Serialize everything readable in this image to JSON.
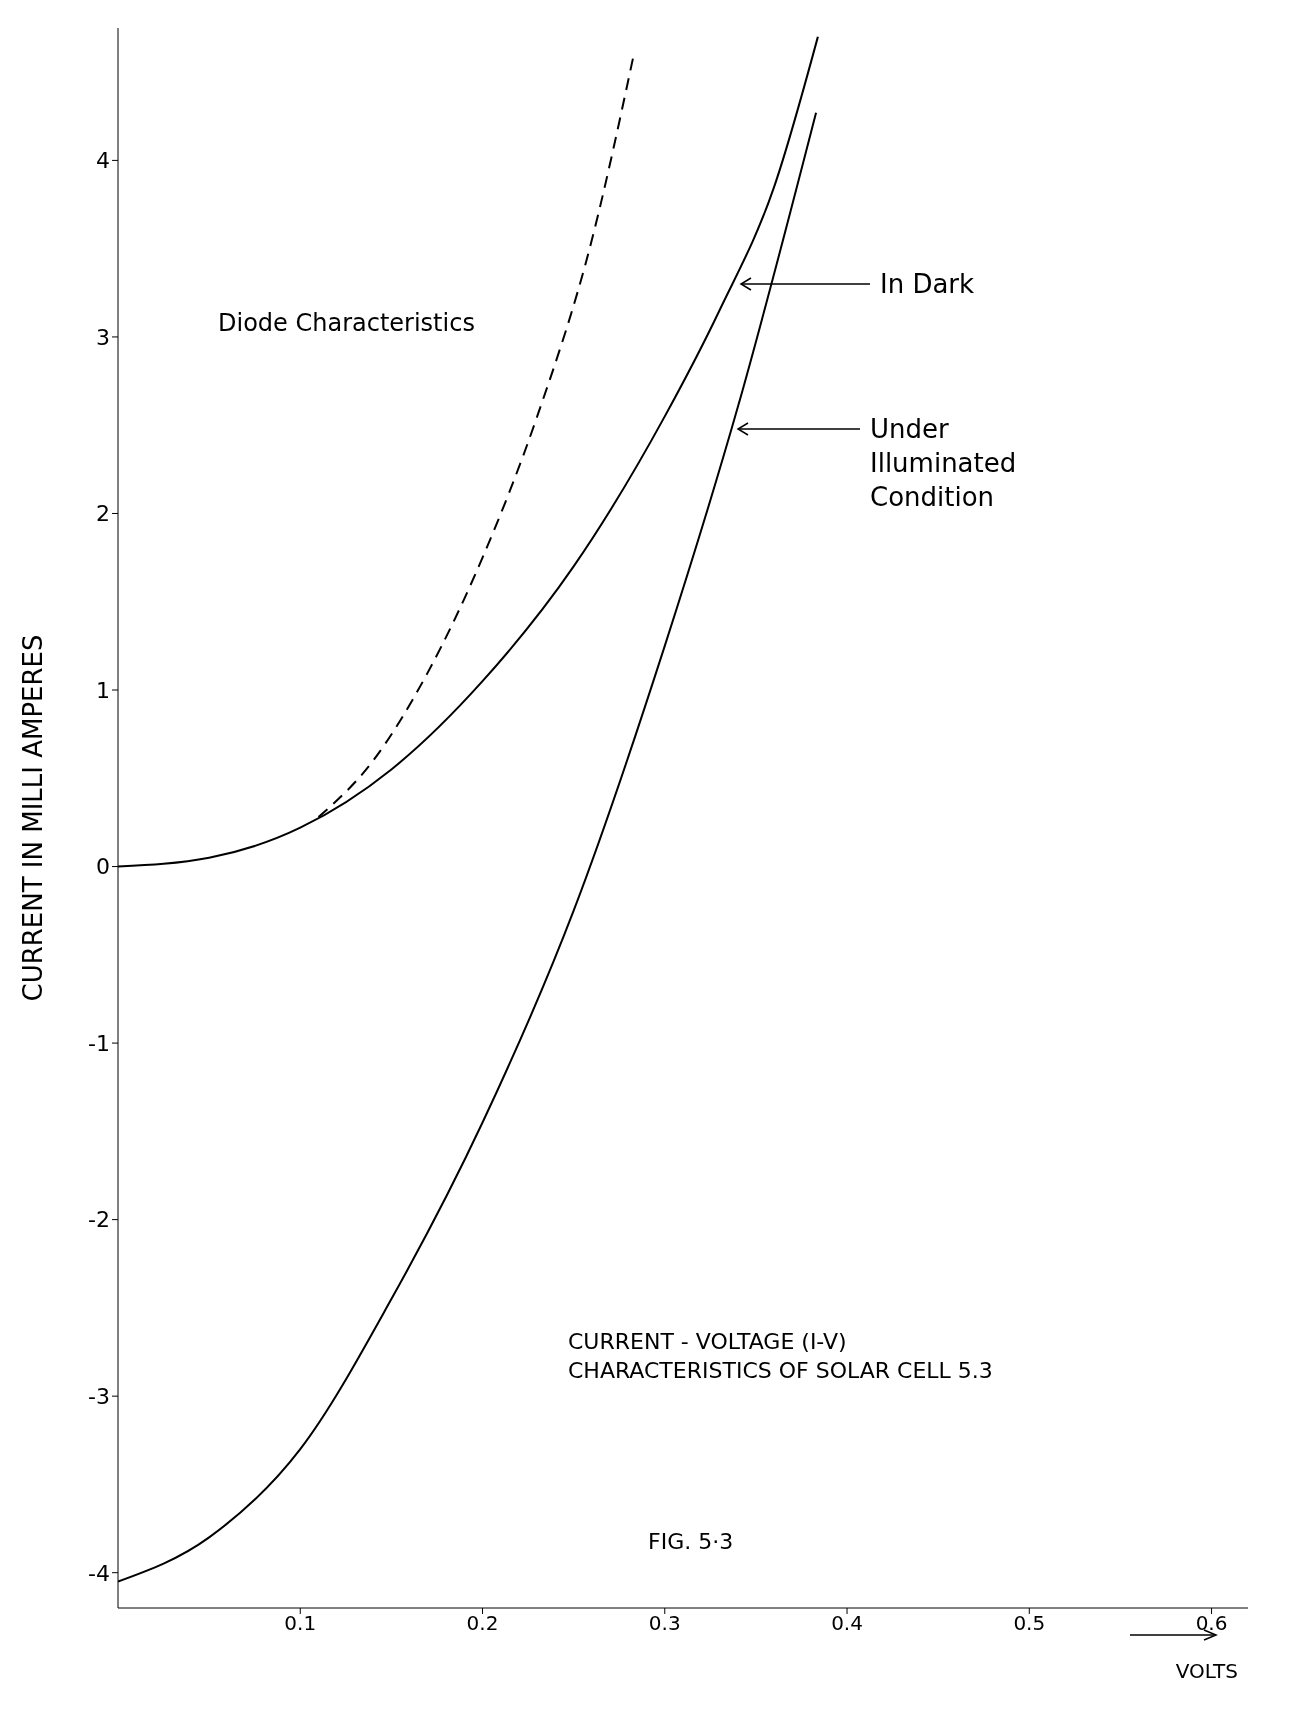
{
  "chart_data": {
    "type": "line",
    "xlabel": "VOLTS",
    "ylabel": "CURRENT IN MILLI AMPERES",
    "xlim": [
      0,
      0.62
    ],
    "ylim": [
      -4.2,
      4.75
    ],
    "xticks": [
      0.1,
      0.2,
      0.3,
      0.4,
      0.5,
      0.6
    ],
    "yticks": [
      -4,
      -3,
      -2,
      -1,
      0,
      1,
      2,
      3,
      4
    ],
    "series": [
      {
        "color": "#000000",
        "line_style": "dashed",
        "x": [
          0.11,
          0.14,
          0.17,
          0.2,
          0.23,
          0.26,
          0.283
        ],
        "values": [
          0.28,
          0.6,
          1.1,
          1.75,
          2.55,
          3.55,
          4.6
        ]
      },
      {
        "color": "#000000",
        "line_style": "solid",
        "x": [
          0,
          0.05,
          0.1,
          0.15,
          0.2,
          0.25,
          0.3,
          0.33,
          0.36,
          0.384
        ],
        "values": [
          0,
          0.05,
          0.22,
          0.55,
          1.05,
          1.7,
          2.55,
          3.15,
          3.85,
          4.7
        ]
      },
      {
        "color": "#000000",
        "line_style": "solid",
        "x": [
          0,
          0.05,
          0.1,
          0.15,
          0.2,
          0.25,
          0.3,
          0.34,
          0.383
        ],
        "values": [
          -4.05,
          -3.8,
          -3.3,
          -2.45,
          -1.45,
          -0.25,
          1.25,
          2.6,
          4.27
        ]
      }
    ],
    "annotations": [
      "Diode Characteristics",
      "CURRENT - VOLTAGE (I-V) CHARACTERISTICS OF SOLAR CELL 5.3",
      "FIG. 5·3",
      "In Dark",
      "Under Illuminated Condition"
    ]
  }
}
